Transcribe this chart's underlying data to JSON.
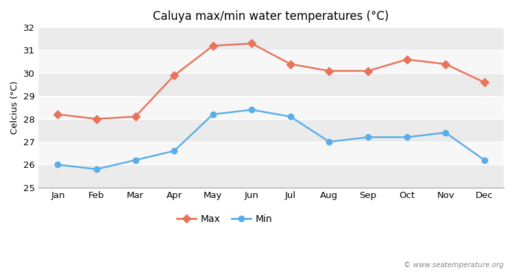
{
  "title": "Caluya max/min water temperatures (°C)",
  "ylabel": "Celcius (°C)",
  "months": [
    "Jan",
    "Feb",
    "Mar",
    "Apr",
    "May",
    "Jun",
    "Jul",
    "Aug",
    "Sep",
    "Oct",
    "Nov",
    "Dec"
  ],
  "max_values": [
    28.2,
    28.0,
    28.1,
    29.9,
    31.2,
    31.3,
    30.4,
    30.1,
    30.1,
    30.6,
    30.4,
    29.6
  ],
  "min_values": [
    26.0,
    25.8,
    26.2,
    26.6,
    28.2,
    28.4,
    28.1,
    27.0,
    27.2,
    27.2,
    27.4,
    26.2
  ],
  "max_color": "#e8735a",
  "min_color": "#5aaee8",
  "ylim": [
    25,
    32
  ],
  "yticks": [
    25,
    26,
    27,
    28,
    29,
    30,
    31,
    32
  ],
  "bg_color": "#ffffff",
  "band_colors": [
    "#ebebeb",
    "#f7f7f7"
  ],
  "watermark": "© www.seatemperature.org",
  "legend_max": "Max",
  "legend_min": "Min",
  "marker_max": "D",
  "marker_min": "o",
  "marker_size_max": 6,
  "marker_size_min": 6,
  "line_width": 1.8
}
